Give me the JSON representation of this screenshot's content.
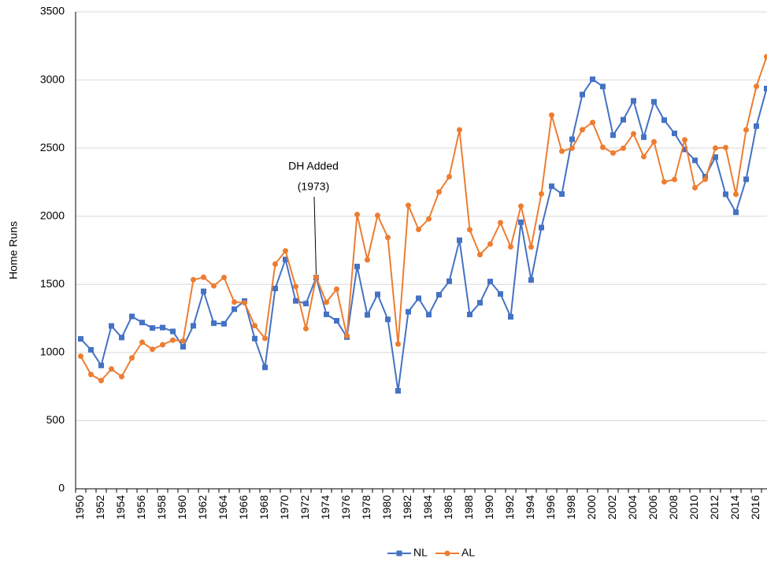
{
  "chart_data": {
    "type": "line",
    "ylabel": "Home Runs",
    "annotation": [
      "DH Added",
      "(1973)"
    ],
    "categories": [
      "1950",
      null,
      "1952",
      null,
      "1954",
      null,
      "1956",
      null,
      "1958",
      null,
      "1960",
      null,
      "1962",
      null,
      "1964",
      null,
      "1966",
      null,
      "1968",
      null,
      "1970",
      null,
      "1972",
      null,
      "1974",
      null,
      "1976",
      null,
      "1978",
      null,
      "1980",
      null,
      "1982",
      null,
      "1984",
      null,
      "1986",
      null,
      "1988",
      null,
      "1990",
      null,
      "1992",
      null,
      "1994",
      null,
      "1996",
      null,
      "1998",
      null,
      "2000",
      null,
      "2002",
      null,
      "2004",
      null,
      "2006",
      null,
      "2008",
      null,
      "2010",
      null,
      "2012",
      null,
      "2014",
      null,
      "2016",
      null
    ],
    "series": [
      {
        "name": "NL",
        "color": "#4472c4",
        "marker": "square",
        "values": [
          1100,
          1020,
          905,
          1195,
          1110,
          1265,
          1220,
          1180,
          1183,
          1155,
          1042,
          1196,
          1449,
          1215,
          1211,
          1318,
          1378,
          1102,
          891,
          1470,
          1683,
          1379,
          1359,
          1550,
          1280,
          1233,
          1113,
          1631,
          1276,
          1427,
          1243,
          719,
          1299,
          1398,
          1278,
          1424,
          1523,
          1824,
          1279,
          1365,
          1521,
          1430,
          1262,
          1956,
          1532,
          1917,
          2220,
          2163,
          2565,
          2893,
          3005,
          2952,
          2595,
          2708,
          2847,
          2580,
          2840,
          2705,
          2608,
          2490,
          2410,
          2290,
          2434,
          2161,
          2029,
          2271,
          2661,
          2937
        ]
      },
      {
        "name": "AL",
        "color": "#ed7d31",
        "marker": "circle",
        "values": [
          973,
          839,
          794,
          879,
          823,
          961,
          1075,
          1024,
          1057,
          1091,
          1086,
          1534,
          1552,
          1489,
          1551,
          1370,
          1365,
          1197,
          1104,
          1649,
          1746,
          1484,
          1175,
          1552,
          1369,
          1465,
          1122,
          2013,
          1680,
          2006,
          1844,
          1062,
          2080,
          1903,
          1980,
          2178,
          2290,
          2634,
          1901,
          1718,
          1796,
          1953,
          1776,
          2074,
          1774,
          2164,
          2742,
          2477,
          2499,
          2635,
          2688,
          2506,
          2464,
          2499,
          2605,
          2437,
          2546,
          2252,
          2270,
          2560,
          2209,
          2271,
          2500,
          2504,
          2161,
          2634,
          2953,
          3170
        ]
      }
    ],
    "ylim": [
      0,
      3500
    ],
    "yticks": [
      0,
      500,
      1000,
      1500,
      2000,
      2500,
      3000,
      3500
    ],
    "grid": true,
    "legend": "bottom"
  }
}
